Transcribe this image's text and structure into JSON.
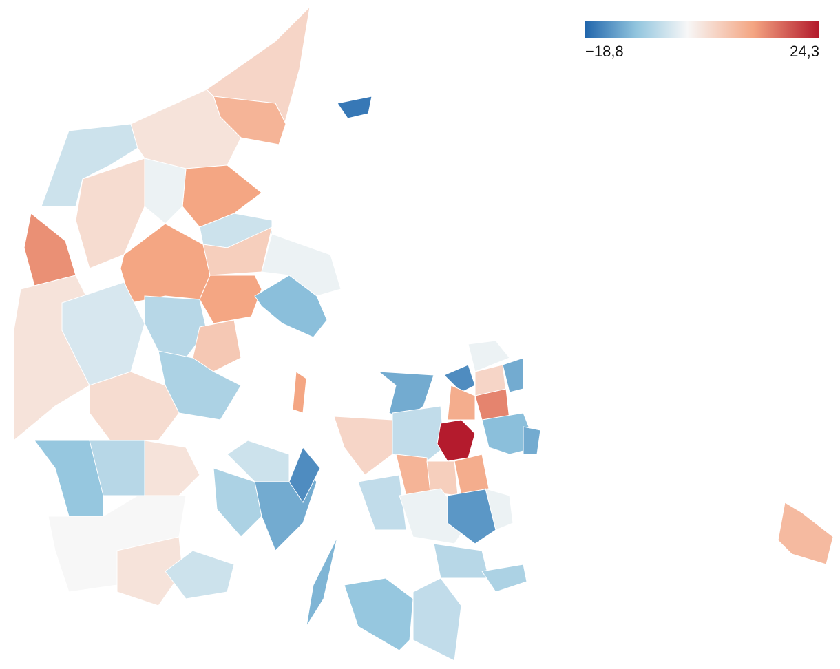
{
  "chart_data": {
    "type": "choropleth",
    "legend": {
      "min": {
        "value": -18.8,
        "label": "−18,8"
      },
      "max": {
        "value": 24.3,
        "label": "24,3"
      }
    },
    "color_scale": [
      "#2166ac",
      "#92c5de",
      "#f7f7f7",
      "#f4a582",
      "#b2182b"
    ],
    "values": [
      5,
      10,
      -4,
      3,
      12,
      -4,
      -1,
      14,
      4,
      12,
      12,
      6,
      -1,
      -10,
      3,
      -3,
      -6,
      7,
      -7,
      4,
      -9,
      -6,
      3,
      0,
      3,
      -4,
      -4,
      -7,
      -12,
      -15,
      -11,
      -12,
      5,
      -5,
      24,
      10,
      6,
      11,
      -5,
      -1,
      -14,
      -1,
      -15,
      -1,
      -12,
      5,
      15,
      -10,
      11,
      -12,
      -9,
      -5,
      -6,
      -7,
      12,
      -17,
      9
    ]
  }
}
